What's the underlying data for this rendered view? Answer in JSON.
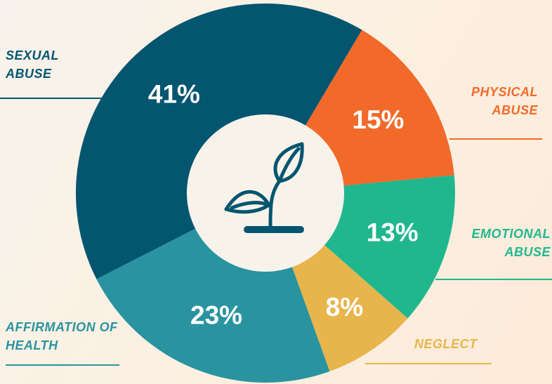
{
  "chart_data": {
    "type": "donut",
    "categories": [
      "SEXUAL ABUSE",
      "PHYSICAL ABUSE",
      "EMOTIONAL ABUSE",
      "NEGLECT",
      "AFFIRMATION OF HEALTH"
    ],
    "values": [
      41,
      15,
      13,
      8,
      23
    ],
    "value_labels": [
      "41%",
      "15%",
      "13%",
      "8%",
      "23%"
    ],
    "colors": [
      "#045570",
      "#f26a2a",
      "#20b78e",
      "#e8b54d",
      "#2a93a0"
    ]
  }
}
